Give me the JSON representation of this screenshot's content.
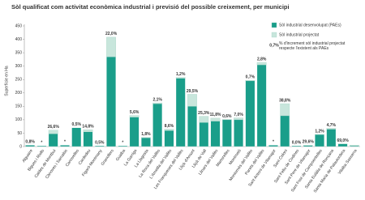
{
  "chart_data": {
    "type": "stacked-bar",
    "title": "Sòl qualificat com activitat econòmica industrial i previsió del possible creixement, per municipi",
    "y_label": "Superfície en Ha",
    "categories": [
      "Alguaire",
      "Bigues i Riells",
      "Caldes de Montbui",
      "Cànoves i Samalús",
      "Canovelles",
      "Cardedeu",
      "Figaró-Montmany",
      "Granollers",
      "Gualba",
      "La Garriga",
      "La Llagosta",
      "La Roca del Vallès",
      "L'Ametlla del Vallès",
      "Les Franqueses del Vallès",
      "Lliçà d'Amunt",
      "Lliçà de Vall",
      "Llinars del Vallès",
      "Martorelles",
      "Montmeló",
      "Montornès del Vallès",
      "Parets del Vallès",
      "Sant Antoni de Vilamajor",
      "Sant Celoni",
      "Sant Feliu de Codines",
      "Sant Pere de Vilamajor",
      "Sant Fost de Campsentelles",
      "Santa Eulàlia de Ronçana",
      "Santa Maria de Palautordera",
      "Vilalba Sasserra"
    ],
    "series": [
      {
        "name": "Sòl industrial desenvolupat (PAEs)",
        "color": "#1a9e8a",
        "values": [
          5,
          3,
          48,
          5,
          70,
          55,
          3,
          335,
          3,
          110,
          33,
          160,
          60,
          255,
          150,
          90,
          95,
          100,
          100,
          245,
          305,
          5,
          115,
          3,
          4,
          45,
          65,
          10,
          3
        ]
      },
      {
        "name": "Sòl industrial projectat",
        "color": "#c8e6dc",
        "values": [
          0,
          0,
          13,
          0,
          0,
          8,
          0,
          73,
          0,
          6,
          1,
          3,
          5,
          3,
          45,
          23,
          11,
          1,
          7,
          2,
          9,
          0,
          45,
          0,
          1,
          0.5,
          3,
          0.5,
          2
        ]
      },
      {
        "name": "% d'increment sòl industrial projectat respecte l'existent als PAEs",
        "legend_example": "0,7%",
        "values": [
          0.8,
          null,
          26.6,
          null,
          0.5,
          14.8,
          0.5,
          22.0,
          null,
          5.6,
          1.8,
          2.1,
          8.6,
          1.2,
          29.5,
          25.3,
          11.8,
          0.6,
          7.0,
          0.7,
          2.8,
          null,
          38.8,
          0.0,
          29.6,
          1.2,
          4.7,
          69.0,
          null
        ],
        "value_labels": [
          "0,8%",
          "*",
          "26,6%",
          "*",
          "0,5%",
          "14,8%",
          "0,5%",
          "22,0%",
          "*",
          "5,6%",
          "1,8%",
          "2,1%",
          "8,6%",
          "1,2%",
          "29,5%",
          "25,3%",
          "11,8%",
          "0,6%",
          "7,0%",
          "0,7%",
          "2,8%",
          "*",
          "38,8%",
          "0,0%",
          "29,6%",
          "1,2%",
          "4,7%",
          "69,0%",
          null
        ]
      }
    ],
    "ylim": [
      0,
      450
    ],
    "yticks": [
      0,
      50,
      100,
      150,
      200,
      250,
      300,
      350,
      400,
      450
    ],
    "grid": false
  }
}
